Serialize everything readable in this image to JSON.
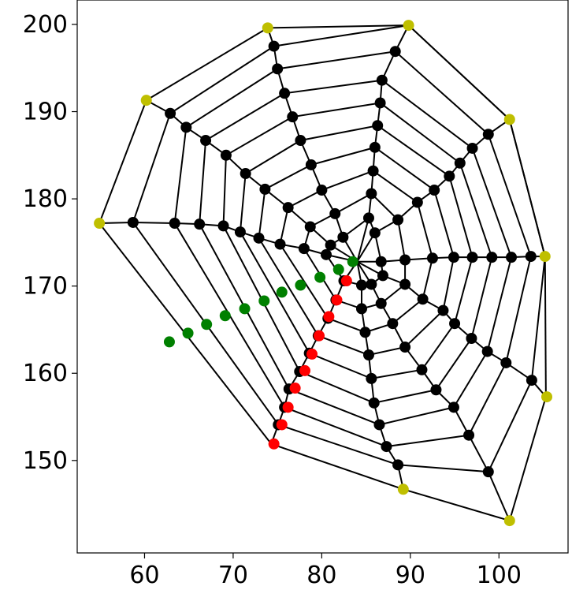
{
  "chart_data": {
    "type": "scatter",
    "title": "",
    "xlabel": "",
    "ylabel": "",
    "xlim": [
      52.4,
      107.8
    ],
    "ylim": [
      139.4,
      202.8
    ],
    "xticks": [
      60,
      70,
      80,
      90,
      100
    ],
    "yticks": [
      150,
      160,
      170,
      180,
      190,
      200
    ],
    "grid": false,
    "legend": "none",
    "hub": [
      84.0,
      172.8
    ],
    "colors": {
      "web": "#000000",
      "black": "#000000",
      "red": "#ff0000",
      "green": "#008000",
      "yellow": "#bfbf00"
    },
    "spokes": [
      [
        [
          86.7,
          172.8
        ],
        [
          89.4,
          173.0
        ],
        [
          92.5,
          173.2
        ],
        [
          94.9,
          173.3
        ],
        [
          97.0,
          173.3
        ],
        [
          99.2,
          173.3
        ],
        [
          101.4,
          173.3
        ],
        [
          103.6,
          173.4
        ],
        [
          105.2,
          173.4
        ]
      ],
      [
        [
          86.0,
          176.1
        ],
        [
          88.6,
          177.6
        ],
        [
          90.8,
          179.6
        ],
        [
          92.7,
          181.0
        ],
        [
          94.4,
          182.6
        ],
        [
          95.6,
          184.1
        ],
        [
          97.0,
          185.8
        ],
        [
          98.8,
          187.4
        ],
        [
          101.2,
          189.1
        ]
      ],
      [
        [
          85.3,
          177.8
        ],
        [
          85.6,
          180.6
        ],
        [
          85.8,
          183.2
        ],
        [
          86.0,
          185.9
        ],
        [
          86.3,
          188.4
        ],
        [
          86.6,
          191.0
        ],
        [
          86.8,
          193.6
        ],
        [
          88.3,
          196.9
        ],
        [
          89.8,
          199.9
        ]
      ],
      [
        [
          82.4,
          175.6
        ],
        [
          81.5,
          178.3
        ],
        [
          80.0,
          181.0
        ],
        [
          78.8,
          183.9
        ],
        [
          77.6,
          186.7
        ],
        [
          76.7,
          189.4
        ],
        [
          75.8,
          192.1
        ],
        [
          75.0,
          194.9
        ],
        [
          74.6,
          197.5
        ],
        [
          73.9,
          199.6
        ]
      ],
      [
        [
          81.0,
          174.7
        ],
        [
          78.7,
          176.8
        ],
        [
          76.2,
          179.0
        ],
        [
          73.6,
          181.1
        ],
        [
          71.4,
          182.9
        ],
        [
          69.2,
          185.0
        ],
        [
          66.9,
          186.7
        ],
        [
          64.7,
          188.2
        ],
        [
          62.9,
          189.8
        ],
        [
          60.2,
          191.3
        ]
      ],
      [
        [
          80.5,
          173.6
        ],
        [
          78.0,
          174.3
        ],
        [
          75.3,
          174.8
        ],
        [
          72.9,
          175.5
        ],
        [
          70.8,
          176.2
        ],
        [
          68.9,
          176.9
        ],
        [
          66.2,
          177.1
        ],
        [
          63.4,
          177.2
        ],
        [
          58.7,
          177.3
        ],
        [
          54.9,
          177.2
        ]
      ],
      [
        [
          82.5,
          170.6
        ],
        [
          81.6,
          168.4
        ],
        [
          80.7,
          166.3
        ],
        [
          79.6,
          164.3
        ],
        [
          78.6,
          162.3
        ],
        [
          77.5,
          160.2
        ],
        [
          76.3,
          158.2
        ],
        [
          75.8,
          156.1
        ],
        [
          75.1,
          154.1
        ],
        [
          74.3,
          151.9
        ]
      ],
      [
        [
          84.5,
          170.1
        ],
        [
          84.5,
          167.4
        ],
        [
          84.9,
          164.7
        ],
        [
          85.3,
          162.1
        ],
        [
          85.6,
          159.4
        ],
        [
          85.9,
          156.6
        ],
        [
          86.5,
          154.1
        ],
        [
          87.3,
          151.6
        ],
        [
          88.6,
          149.5
        ],
        [
          89.2,
          146.7
        ]
      ],
      [
        [
          85.6,
          170.2
        ],
        [
          86.7,
          168.0
        ],
        [
          88.0,
          165.7
        ],
        [
          89.4,
          163.0
        ],
        [
          91.3,
          160.4
        ],
        [
          92.9,
          158.1
        ],
        [
          94.9,
          156.1
        ],
        [
          96.6,
          152.9
        ],
        [
          98.8,
          148.7
        ],
        [
          101.2,
          143.1
        ]
      ],
      [
        [
          86.9,
          171.2
        ],
        [
          89.4,
          170.2
        ],
        [
          91.4,
          168.5
        ],
        [
          93.7,
          167.2
        ],
        [
          95.0,
          165.7
        ],
        [
          96.9,
          164.0
        ],
        [
          98.7,
          162.5
        ],
        [
          100.8,
          161.2
        ],
        [
          103.7,
          159.2
        ],
        [
          105.3,
          157.3
        ]
      ]
    ],
    "red_points": [
      [
        82.8,
        170.6
      ],
      [
        81.7,
        168.4
      ],
      [
        80.8,
        166.5
      ],
      [
        79.7,
        164.3
      ],
      [
        78.9,
        162.2
      ],
      [
        78.1,
        160.3
      ],
      [
        77.0,
        158.3
      ],
      [
        76.2,
        156.1
      ],
      [
        75.5,
        154.1
      ],
      [
        74.6,
        151.9
      ]
    ],
    "green_points": [
      [
        83.5,
        172.8
      ],
      [
        81.9,
        171.9
      ],
      [
        79.8,
        171.0
      ],
      [
        77.6,
        170.1
      ],
      [
        75.5,
        169.3
      ],
      [
        73.5,
        168.3
      ],
      [
        71.3,
        167.4
      ],
      [
        69.1,
        166.6
      ],
      [
        67.0,
        165.6
      ],
      [
        64.9,
        164.6
      ],
      [
        62.8,
        163.6
      ]
    ],
    "yellow_points": [
      [
        54.9,
        177.2
      ],
      [
        60.2,
        191.3
      ],
      [
        73.9,
        199.6
      ],
      [
        89.8,
        199.9
      ],
      [
        101.2,
        189.1
      ],
      [
        105.2,
        173.4
      ],
      [
        105.4,
        157.3
      ],
      [
        101.2,
        143.1
      ],
      [
        89.2,
        146.7
      ]
    ]
  }
}
